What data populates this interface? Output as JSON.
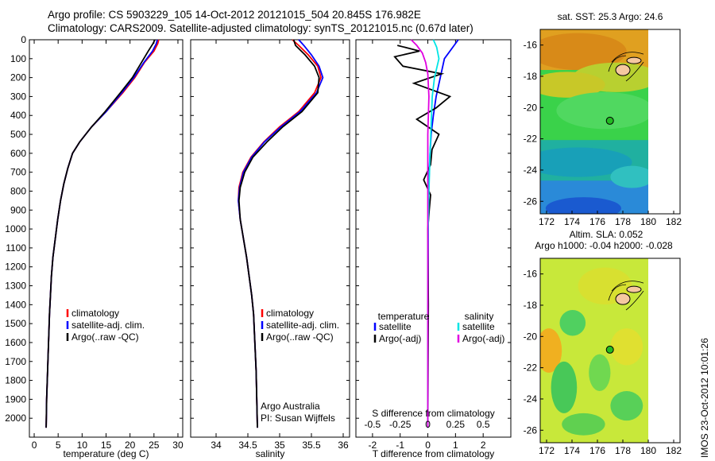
{
  "header": {
    "title_line1": "Argo profile: CS 5903229_105 14-Oct-2012 20121015_504 20.845S 176.982E",
    "title_line2": "Climatology: CARS2009. Satellite-adjusted climatology: synTS_20121015.nc (0.67d later)"
  },
  "colors": {
    "climatology": "#ff0000",
    "satellite": "#0000ff",
    "argo": "#000000",
    "satellite_s": "#00e5e5",
    "argo_s": "#e000e0"
  },
  "chart_data": [
    {
      "type": "line",
      "xlabel": "temperature (deg C)",
      "ylabel": "",
      "xlim": [
        -1,
        31
      ],
      "ylim": [
        2100,
        0
      ],
      "xticks": [
        "0",
        "5",
        "10",
        "15",
        "20",
        "25",
        "30"
      ],
      "xtick_values": [
        0,
        5,
        10,
        15,
        20,
        25,
        30
      ],
      "yticks": [
        "0",
        "100",
        "200",
        "300",
        "400",
        "500",
        "600",
        "700",
        "800",
        "900",
        "1000",
        "1100",
        "1200",
        "1300",
        "1400",
        "1500",
        "1600",
        "1700",
        "1800",
        "1900",
        "2000"
      ],
      "ytick_values": [
        0,
        100,
        200,
        300,
        400,
        500,
        600,
        700,
        800,
        900,
        1000,
        1100,
        1200,
        1300,
        1400,
        1500,
        1600,
        1700,
        1800,
        1900,
        2000
      ],
      "legend": [
        "climatology",
        "satellite-adj. clim.",
        "Argo(..raw -QC)"
      ],
      "legend_position": "lower-center",
      "series": [
        {
          "name": "climatology",
          "x": [
            26,
            25.8,
            25,
            23,
            21,
            18.5,
            15,
            12,
            9.5,
            8,
            7,
            6.2,
            5.5,
            4.9,
            4.4,
            3.9,
            3.6,
            3.4,
            3.2,
            3,
            2.8,
            2.6,
            2.5
          ],
          "y": [
            0,
            20,
            60,
            120,
            200,
            280,
            380,
            460,
            540,
            600,
            680,
            760,
            850,
            950,
            1050,
            1150,
            1250,
            1350,
            1450,
            1600,
            1750,
            1900,
            2050
          ]
        },
        {
          "name": "satellite-adj. clim.",
          "x": [
            25.7,
            25.5,
            24.7,
            22.9,
            20.8,
            18.3,
            15,
            12,
            9.5,
            8,
            7,
            6.2,
            5.5,
            4.9,
            4.4,
            3.9,
            3.6,
            3.4,
            3.2,
            3,
            2.8,
            2.6,
            2.5
          ],
          "y": [
            0,
            20,
            60,
            120,
            200,
            280,
            380,
            460,
            540,
            600,
            680,
            760,
            850,
            950,
            1050,
            1150,
            1250,
            1350,
            1450,
            1600,
            1750,
            1900,
            2050
          ]
        },
        {
          "name": "Argo(..raw -QC)",
          "x": [
            25.2,
            24.8,
            23.8,
            22.4,
            20.5,
            18,
            14.8,
            12,
            9.5,
            8,
            7,
            6.2,
            5.5,
            4.9,
            4.4,
            3.9,
            3.6,
            3.4,
            3.2,
            3,
            2.8,
            2.6,
            2.5
          ],
          "y": [
            0,
            20,
            60,
            120,
            200,
            280,
            380,
            460,
            540,
            600,
            680,
            760,
            850,
            950,
            1050,
            1150,
            1250,
            1350,
            1450,
            1600,
            1750,
            1900,
            2050
          ]
        }
      ]
    },
    {
      "type": "line",
      "xlabel": "salinity",
      "ylabel": "",
      "xlim": [
        33.6,
        36.1
      ],
      "ylim": [
        2100,
        0
      ],
      "xticks": [
        "34",
        "34.5",
        "35",
        "35.5",
        "36"
      ],
      "xtick_values": [
        34,
        34.5,
        35,
        35.5,
        36
      ],
      "legend": [
        "climatology",
        "satellite-adj. clim.",
        "Argo(..raw -QC)"
      ],
      "legend_position": "lower-center",
      "annotation_lines": [
        "Argo Australia",
        "PI: Susan Wijffels"
      ],
      "series": [
        {
          "name": "climatology",
          "x": [
            35.2,
            35.3,
            35.45,
            35.6,
            35.65,
            35.55,
            35.3,
            35,
            34.75,
            34.55,
            34.42,
            34.36,
            34.35,
            34.38,
            34.43,
            34.48,
            34.52,
            34.56,
            34.59,
            34.61,
            34.63,
            34.64,
            34.65
          ],
          "y": [
            0,
            30,
            80,
            140,
            200,
            280,
            380,
            460,
            540,
            620,
            700,
            780,
            850,
            950,
            1050,
            1150,
            1250,
            1350,
            1450,
            1600,
            1750,
            1900,
            2050
          ]
        },
        {
          "name": "satellite-adj. clim.",
          "x": [
            35.3,
            35.38,
            35.5,
            35.62,
            35.68,
            35.58,
            35.32,
            35.02,
            34.76,
            34.56,
            34.43,
            34.37,
            34.35,
            34.38,
            34.43,
            34.48,
            34.52,
            34.56,
            34.59,
            34.61,
            34.63,
            34.64,
            34.65
          ],
          "y": [
            0,
            30,
            80,
            140,
            200,
            280,
            380,
            460,
            540,
            620,
            700,
            780,
            850,
            950,
            1050,
            1150,
            1250,
            1350,
            1450,
            1600,
            1750,
            1900,
            2050
          ]
        },
        {
          "name": "Argo(..raw -QC)",
          "x": [
            35.22,
            35.25,
            35.4,
            35.55,
            35.62,
            35.6,
            35.35,
            35.05,
            34.8,
            34.58,
            34.45,
            34.38,
            34.36,
            34.38,
            34.43,
            34.48,
            34.52,
            34.56,
            34.59,
            34.61,
            34.63,
            34.64,
            34.65
          ],
          "y": [
            0,
            30,
            80,
            140,
            200,
            280,
            380,
            460,
            540,
            620,
            700,
            780,
            850,
            950,
            1050,
            1150,
            1250,
            1350,
            1450,
            1600,
            1750,
            1900,
            2050
          ]
        }
      ]
    },
    {
      "type": "line",
      "xlabel": "T difference from climatology",
      "x2label": "S difference from climatology",
      "xlim": [
        -2.6,
        3
      ],
      "ylim": [
        2100,
        0
      ],
      "xticks": [
        "-2",
        "-1",
        "0",
        "1",
        "2"
      ],
      "xtick_values": [
        -2,
        -1,
        0,
        1,
        2
      ],
      "x2ticks": [
        "-0.5",
        "-0.25",
        "0",
        "0.25",
        "0.5"
      ],
      "x2tick_values": [
        -0.5,
        -0.25,
        0,
        0.25,
        0.5
      ],
      "x2scale": 4,
      "legend_left_header": "temperature",
      "legend_right_header": "salinity",
      "legend_left": [
        "satellite",
        "Argo(-adj)"
      ],
      "legend_right": [
        "satellite",
        "Argo(-adj)"
      ],
      "legend_position": "lower-center",
      "series": [
        {
          "name": "satellite",
          "x": [
            1.1,
            0.9,
            0.6,
            0.45,
            0.3,
            0.2,
            0.12,
            0.08,
            0.05,
            0.03,
            0.02,
            0.01,
            0.01,
            0,
            0
          ],
          "y": [
            0,
            40,
            100,
            200,
            300,
            400,
            500,
            600,
            700,
            800,
            900,
            1100,
            1300,
            1600,
            2050
          ]
        },
        {
          "name": "Argo(-adj)",
          "x": [
            -1.1,
            -0.3,
            -1.2,
            -0.9,
            0.5,
            -0.5,
            0.8,
            0.3,
            -0.4,
            0.4,
            0.15,
            0.1,
            -0.15,
            0.1,
            0.05,
            0,
            0.02,
            0
          ],
          "y": [
            30,
            60,
            90,
            140,
            180,
            230,
            300,
            360,
            420,
            500,
            580,
            660,
            740,
            820,
            900,
            1000,
            1400,
            2050
          ]
        },
        {
          "name": "satellite",
          "x": [
            0.05,
            0.08,
            0.1,
            0.06,
            0.04,
            0.03,
            0.02,
            0.01,
            0,
            0
          ],
          "y": [
            0,
            40,
            100,
            200,
            300,
            450,
            600,
            800,
            1100,
            2050
          ]
        },
        {
          "name": "Argo(-adj)",
          "x": [
            -0.15,
            -0.1,
            -0.05,
            -0.02,
            0,
            0.01,
            0,
            0
          ],
          "y": [
            0,
            30,
            70,
            120,
            180,
            300,
            500,
            2050
          ]
        }
      ]
    },
    {
      "type": "heatmap",
      "title": "sat. SST: 25.3 Argo: 24.6",
      "xlim": [
        171.5,
        182.5
      ],
      "ylim": [
        -26.8,
        -15
      ],
      "xticks": [
        "172",
        "174",
        "176",
        "178",
        "180",
        "182"
      ],
      "xtick_values": [
        172,
        174,
        176,
        178,
        180,
        182
      ],
      "yticks": [
        "-16",
        "-18",
        "-20",
        "-22",
        "-24",
        "-26"
      ],
      "ytick_values": [
        -16,
        -18,
        -20,
        -22,
        -24,
        -26
      ],
      "data_extent_x": [
        171.5,
        180
      ],
      "marker": {
        "x": 176.982,
        "y": -20.845
      }
    },
    {
      "type": "heatmap",
      "title_line1": "Altim. SLA: 0.052",
      "title_line2": "Argo h1000: -0.04 h2000: -0.028",
      "xlim": [
        171.5,
        182.5
      ],
      "ylim": [
        -26.8,
        -15
      ],
      "xticks": [
        "172",
        "174",
        "176",
        "178",
        "180",
        "182"
      ],
      "xtick_values": [
        172,
        174,
        176,
        178,
        180,
        182
      ],
      "yticks": [
        "-16",
        "-18",
        "-20",
        "-22",
        "-24",
        "-26"
      ],
      "ytick_values": [
        -16,
        -18,
        -20,
        -22,
        -24,
        -26
      ],
      "data_extent_x": [
        171.5,
        180
      ],
      "marker": {
        "x": 176.982,
        "y": -20.845
      }
    }
  ],
  "stamp": "IMOS 23-Oct-2012 10:01:26"
}
